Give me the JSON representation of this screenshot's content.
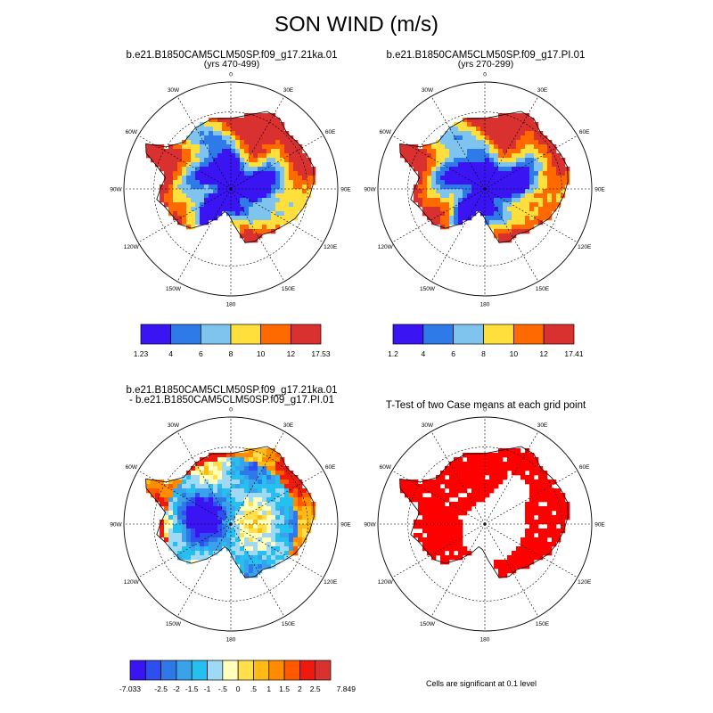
{
  "title": "SON WIND (m/s)",
  "panels": [
    {
      "id": "case1",
      "title": "b.e21.B1850CAM5CLM50SP.f09_g17.21ka.01",
      "subtitle": "(yrs 470-499)"
    },
    {
      "id": "case2",
      "title": "b.e21.B1850CAM5CLM50SP.f09_g17.PI.01",
      "subtitle": "(yrs 270-299)"
    },
    {
      "id": "diff",
      "title": "b.e21.B1850CAM5CLM50SP.f09_g17.21ka.01",
      "subtitle": "- b.e21.B1850CAM5CLM50SP.f09_g17.PI.01"
    },
    {
      "id": "ttest",
      "title": "T-Test of two Case means at each grid point",
      "subtitle": ""
    }
  ],
  "lon_labels": [
    "0",
    "30E",
    "60E",
    "90E",
    "120E",
    "150E",
    "180",
    "150W",
    "120W",
    "90W",
    "60W",
    "30W"
  ],
  "note": "Cells are significant at 0.1 level",
  "chart_data": [
    {
      "type": "heatmap",
      "projection": "south-polar-stereographic",
      "title": "b.e21.B1850CAM5CLM50SP.f09_g17.21ka.01",
      "subtitle": "(yrs 470-499)",
      "colorbar": {
        "levels": [
          4,
          6,
          8,
          10,
          12
        ],
        "tick_labels": [
          "1.23",
          "4",
          "6",
          "8",
          "10",
          "12",
          "17.53"
        ],
        "colors": [
          "#3a14f2",
          "#2e7ae8",
          "#7fc4ee",
          "#ffdf3c",
          "#ff6a00",
          "#d93030"
        ],
        "min": 1.23,
        "max": 17.53
      }
    },
    {
      "type": "heatmap",
      "projection": "south-polar-stereographic",
      "title": "b.e21.B1850CAM5CLM50SP.f09_g17.PI.01",
      "subtitle": "(yrs 270-299)",
      "colorbar": {
        "levels": [
          4,
          6,
          8,
          10,
          12
        ],
        "tick_labels": [
          "1.2",
          "4",
          "6",
          "8",
          "10",
          "12",
          "17.41"
        ],
        "colors": [
          "#3a14f2",
          "#2e7ae8",
          "#7fc4ee",
          "#ffdf3c",
          "#ff6a00",
          "#d93030"
        ],
        "min": 1.2,
        "max": 17.41
      }
    },
    {
      "type": "heatmap",
      "projection": "south-polar-stereographic",
      "title": "b.e21.B1850CAM5CLM50SP.f09_g17.21ka.01 - b.e21.B1850CAM5CLM50SP.f09_g17.PI.01",
      "colorbar": {
        "levels": [
          -2.5,
          -2,
          -1.5,
          -1,
          -0.5,
          0,
          0.5,
          1,
          1.5,
          2,
          2.5
        ],
        "tick_labels": [
          "-7.033",
          "",
          "-2.5",
          "-2",
          "-1.5",
          "-1",
          "-.5",
          "0",
          ".5",
          "1",
          "1.5",
          "2",
          "2.5",
          "",
          "7.849"
        ],
        "colors": [
          "#3a14f2",
          "#2f4ef0",
          "#2f78ea",
          "#3aa2ea",
          "#25c0f0",
          "#9fd9f4",
          "#ffffbe",
          "#ffe04a",
          "#ffbb14",
          "#ff8c00",
          "#ff5a00",
          "#ee1a10",
          "#d93030"
        ],
        "min": -7.033,
        "max": 7.849
      }
    },
    {
      "type": "heatmap",
      "projection": "south-polar-stereographic",
      "title": "T-Test of two Case means at each grid point",
      "significance_color": "#ff0000",
      "significance_level": 0.1
    }
  ]
}
